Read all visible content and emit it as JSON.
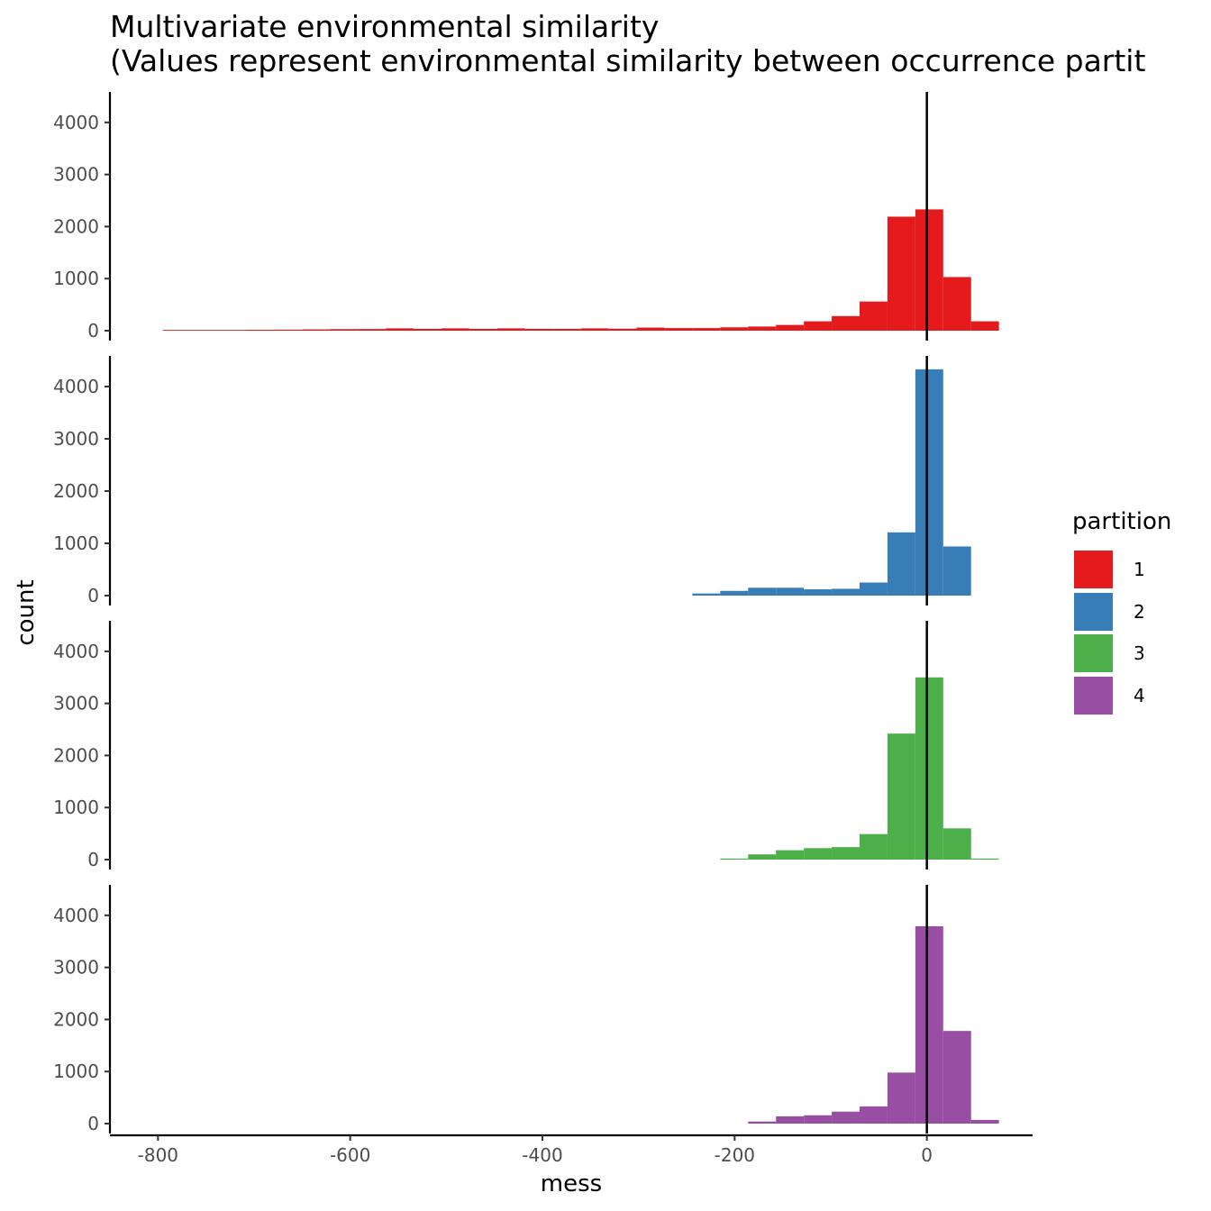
{
  "title": "Multivariate environmental similarity",
  "subtitle": "(Values represent environmental similarity between occurrence partit",
  "chart_data": {
    "type": "bar",
    "xlabel": "mess",
    "ylabel": "count",
    "xlim": [
      -850,
      110
    ],
    "ylim": [
      0,
      4500
    ],
    "x_ticks": [
      -800,
      -600,
      -400,
      -200,
      0
    ],
    "y_ticks": [
      0,
      1000,
      2000,
      3000,
      4000
    ],
    "vline_x": 0,
    "bin_width": 29,
    "legend": {
      "title": "partition",
      "placement": "right"
    },
    "series": [
      {
        "name": "1",
        "color": "#E41A1C",
        "bins": [
          {
            "x0": -795,
            "x1": -766,
            "count": 15
          },
          {
            "x0": -766,
            "x1": -737,
            "count": 15
          },
          {
            "x0": -737,
            "x1": -708,
            "count": 15
          },
          {
            "x0": -708,
            "x1": -679,
            "count": 18
          },
          {
            "x0": -679,
            "x1": -650,
            "count": 20
          },
          {
            "x0": -650,
            "x1": -621,
            "count": 25
          },
          {
            "x0": -621,
            "x1": -592,
            "count": 30
          },
          {
            "x0": -592,
            "x1": -563,
            "count": 32
          },
          {
            "x0": -563,
            "x1": -534,
            "count": 45
          },
          {
            "x0": -534,
            "x1": -505,
            "count": 35
          },
          {
            "x0": -505,
            "x1": -476,
            "count": 45
          },
          {
            "x0": -476,
            "x1": -447,
            "count": 35
          },
          {
            "x0": -447,
            "x1": -418,
            "count": 45
          },
          {
            "x0": -418,
            "x1": -389,
            "count": 35
          },
          {
            "x0": -389,
            "x1": -360,
            "count": 35
          },
          {
            "x0": -360,
            "x1": -331,
            "count": 45
          },
          {
            "x0": -331,
            "x1": -302,
            "count": 38
          },
          {
            "x0": -302,
            "x1": -273,
            "count": 60
          },
          {
            "x0": -273,
            "x1": -244,
            "count": 50
          },
          {
            "x0": -244,
            "x1": -215,
            "count": 50
          },
          {
            "x0": -215,
            "x1": -186,
            "count": 65
          },
          {
            "x0": -186,
            "x1": -157,
            "count": 80
          },
          {
            "x0": -157,
            "x1": -128,
            "count": 110
          },
          {
            "x0": -128,
            "x1": -99,
            "count": 180
          },
          {
            "x0": -99,
            "x1": -70,
            "count": 280
          },
          {
            "x0": -70,
            "x1": -41,
            "count": 560
          },
          {
            "x0": -41,
            "x1": -12,
            "count": 2190
          },
          {
            "x0": -12,
            "x1": 17,
            "count": 2330
          },
          {
            "x0": 17,
            "x1": 46,
            "count": 1030
          },
          {
            "x0": 46,
            "x1": 75,
            "count": 180
          }
        ]
      },
      {
        "name": "2",
        "color": "#377EB8",
        "bins": [
          {
            "x0": -244,
            "x1": -215,
            "count": 40
          },
          {
            "x0": -215,
            "x1": -186,
            "count": 90
          },
          {
            "x0": -186,
            "x1": -157,
            "count": 150
          },
          {
            "x0": -157,
            "x1": -128,
            "count": 150
          },
          {
            "x0": -128,
            "x1": -99,
            "count": 120
          },
          {
            "x0": -99,
            "x1": -70,
            "count": 130
          },
          {
            "x0": -70,
            "x1": -41,
            "count": 250
          },
          {
            "x0": -41,
            "x1": -12,
            "count": 1210
          },
          {
            "x0": -12,
            "x1": 17,
            "count": 4330
          },
          {
            "x0": 17,
            "x1": 46,
            "count": 940
          }
        ]
      },
      {
        "name": "3",
        "color": "#4DAF4A",
        "bins": [
          {
            "x0": -215,
            "x1": -186,
            "count": 20
          },
          {
            "x0": -186,
            "x1": -157,
            "count": 100
          },
          {
            "x0": -157,
            "x1": -128,
            "count": 180
          },
          {
            "x0": -128,
            "x1": -99,
            "count": 220
          },
          {
            "x0": -99,
            "x1": -70,
            "count": 240
          },
          {
            "x0": -70,
            "x1": -41,
            "count": 490
          },
          {
            "x0": -41,
            "x1": -12,
            "count": 2420
          },
          {
            "x0": -12,
            "x1": 17,
            "count": 3500
          },
          {
            "x0": 17,
            "x1": 46,
            "count": 600
          },
          {
            "x0": 46,
            "x1": 75,
            "count": 20
          }
        ]
      },
      {
        "name": "4",
        "color": "#984EA3",
        "bins": [
          {
            "x0": -186,
            "x1": -157,
            "count": 40
          },
          {
            "x0": -157,
            "x1": -128,
            "count": 140
          },
          {
            "x0": -128,
            "x1": -99,
            "count": 160
          },
          {
            "x0": -99,
            "x1": -70,
            "count": 230
          },
          {
            "x0": -70,
            "x1": -41,
            "count": 330
          },
          {
            "x0": -41,
            "x1": -12,
            "count": 980
          },
          {
            "x0": -12,
            "x1": 17,
            "count": 3790
          },
          {
            "x0": 17,
            "x1": 46,
            "count": 1780
          },
          {
            "x0": 46,
            "x1": 75,
            "count": 70
          }
        ]
      }
    ]
  }
}
